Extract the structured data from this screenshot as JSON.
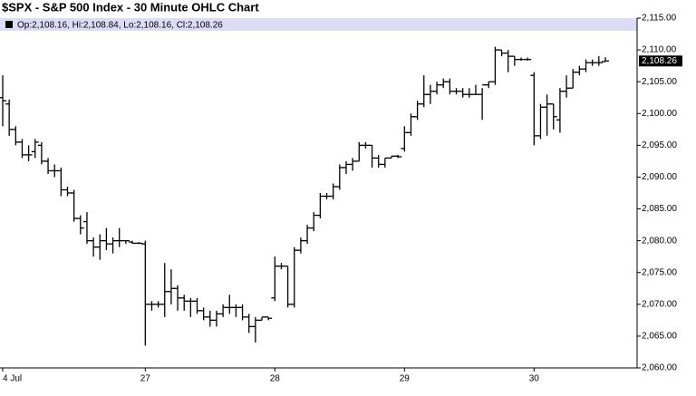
{
  "chart_data": {
    "type": "ohlc",
    "title": "$SPX - S&P 500 Index - 30 Minute OHLC Chart",
    "info": "Op:2,108.16, Hi:2,108.84, Lo:2,108.16, Cl:2,108.26",
    "last_value": {
      "value": 2108.26,
      "label": "2,108.26"
    },
    "x": [
      0,
      1,
      2,
      3,
      4,
      5,
      6,
      7,
      8,
      9,
      10,
      11,
      12,
      13,
      14,
      15,
      16,
      17,
      18,
      19,
      20,
      21,
      22,
      23,
      24,
      25,
      26,
      27,
      28,
      29,
      30,
      31,
      32,
      33,
      34,
      35,
      36,
      37,
      38,
      39,
      40,
      41,
      42,
      43,
      44,
      45,
      46,
      47,
      48,
      49,
      50,
      51,
      52,
      53,
      54,
      55,
      56,
      57,
      58,
      59,
      60,
      61,
      62,
      63,
      64,
      65,
      66,
      67,
      68,
      69,
      70,
      71,
      72,
      73,
      74,
      75,
      76,
      77,
      78,
      79,
      80,
      81,
      82,
      83,
      84,
      85,
      86,
      87,
      88,
      89,
      90,
      91,
      92,
      93
    ],
    "series": [
      {
        "color": "#000000",
        "open": [
          2102.5,
          2101.5,
          2097.5,
          2095.5,
          2093.5,
          2094,
          2095,
          2092.5,
          2091,
          2091,
          2088,
          2087.5,
          2083.5,
          2083,
          2080,
          2079,
          2080,
          2079.5,
          2080,
          2080,
          2079.8,
          2079.6,
          2079.5,
          2070,
          2070,
          2070,
          2072,
          2072.5,
          2071,
          2070.5,
          2070.5,
          2069,
          2068,
          2067.5,
          2068.5,
          2069.5,
          2069.5,
          2069.5,
          2068,
          2066.5,
          2067.5,
          2068,
          2071,
          2076,
          2076,
          2070,
          2078.5,
          2080,
          2082,
          2084,
          2087,
          2087,
          2088.5,
          2091.5,
          2092,
          2092.5,
          2095,
          2095,
          2093,
          2092,
          2093,
          2093.3,
          2094.5,
          2097,
          2099.5,
          2101.5,
          2103,
          2103.5,
          2104.5,
          2105,
          2103.5,
          2103.5,
          2103,
          2103,
          2103,
          2104.5,
          2105,
          2110,
          2109.5,
          2109,
          2108.5,
          2108.5,
          2106,
          2096.5,
          2101,
          2101.5,
          2099,
          2103.5,
          2104,
          2106.5,
          2107,
          2108,
          2108,
          2108.16
        ],
        "high": [
          2106,
          2102.2,
          2098,
          2096,
          2095,
          2096,
          2095.5,
          2093,
          2092,
          2091.5,
          2088.5,
          2088,
          2084,
          2084.5,
          2080.5,
          2081,
          2082,
          2080.5,
          2082,
          2080,
          2080,
          2079.8,
          2080,
          2070.5,
          2070.5,
          2076.5,
          2075.5,
          2073,
          2071.5,
          2071,
          2071,
          2069.5,
          2069,
          2069,
          2070,
          2071.5,
          2070,
          2070,
          2068.5,
          2068,
          2068,
          2068,
          2077.5,
          2076.5,
          2076,
          2079,
          2080.5,
          2082.5,
          2084.5,
          2087.5,
          2087.5,
          2089,
          2092,
          2092.5,
          2093,
          2095.5,
          2095.5,
          2095,
          2093.5,
          2093,
          2093.3,
          2093.5,
          2098,
          2100,
          2102,
          2106,
          2104.5,
          2105,
          2105.5,
          2105.5,
          2104,
          2104,
          2104,
          2104.5,
          2104,
          2105,
          2110.5,
          2110,
          2110,
          2109,
          2108.8,
          2108.8,
          2106.5,
          2101.5,
          2103,
          2101.5,
          2104,
          2106,
          2107,
          2107.5,
          2108.5,
          2108.5,
          2109,
          2108.84
        ],
        "low": [
          2098,
          2096.5,
          2095,
          2093,
          2092.5,
          2093,
          2092,
          2090.5,
          2090,
          2087,
          2087,
          2083,
          2081,
          2079.5,
          2077.5,
          2077,
          2078.5,
          2078,
          2079,
          2079.5,
          2079.5,
          2079.5,
          2063.5,
          2069,
          2069.5,
          2068,
          2070,
          2069,
          2069,
          2068,
          2068.5,
          2067.5,
          2066.5,
          2066.5,
          2068,
          2068.5,
          2068,
          2067.5,
          2065.5,
          2064,
          2067.5,
          2067.5,
          2070.5,
          2075.5,
          2069.5,
          2069.5,
          2078,
          2079.5,
          2081.5,
          2083.5,
          2086.5,
          2086.5,
          2088,
          2090.5,
          2091,
          2092.5,
          2094.5,
          2091.5,
          2091.5,
          2091.5,
          2093,
          2093,
          2094,
          2096.5,
          2099,
          2101,
          2101.5,
          2103,
          2104,
          2103,
          2103,
          2102.5,
          2102.5,
          2103,
          2099,
          2104,
          2104.5,
          2109,
          2106.5,
          2107.5,
          2108.3,
          2108.3,
          2095,
          2096,
          2096.5,
          2097.5,
          2097,
          2102.5,
          2104,
          2106,
          2106.5,
          2107.5,
          2107.5,
          2108.16
        ],
        "close": [
          2102,
          2097.5,
          2095.5,
          2093.5,
          2093.5,
          2095.5,
          2092.5,
          2091,
          2091,
          2088,
          2087.5,
          2083.5,
          2082,
          2080,
          2079,
          2080,
          2079.5,
          2080,
          2080,
          2080,
          2079.6,
          2079.6,
          2070,
          2070,
          2070,
          2072,
          2072.5,
          2071,
          2070.5,
          2070.5,
          2069,
          2068,
          2067.5,
          2068.5,
          2069.5,
          2069.5,
          2069.5,
          2068,
          2066.5,
          2067.5,
          2068,
          2067.8,
          2076,
          2076,
          2070,
          2078.5,
          2080,
          2082,
          2084,
          2087,
          2087,
          2088.5,
          2091.5,
          2092,
          2092.5,
          2095,
          2095,
          2093,
          2092,
          2093,
          2093.3,
          2093.2,
          2097,
          2099.5,
          2101.5,
          2103,
          2103.5,
          2104.5,
          2105,
          2103.5,
          2103.5,
          2103,
          2103,
          2103,
          2104.5,
          2105,
          2110,
          2109.5,
          2109,
          2108.5,
          2108.5,
          2108.5,
          2096.5,
          2101,
          2101.5,
          2099.5,
          2103.5,
          2104,
          2106.5,
          2107,
          2108,
          2108,
          2108,
          2108.26
        ]
      }
    ],
    "xlim": [
      -0.42,
      97.9
    ],
    "xticks": [
      {
        "value": 0,
        "label": "4 Jul"
      },
      {
        "value": 22,
        "label": "27"
      },
      {
        "value": 42,
        "label": "28"
      },
      {
        "value": 62,
        "label": "29"
      },
      {
        "value": 82,
        "label": "30"
      }
    ],
    "ylim": [
      2060,
      2115
    ],
    "yticks": [
      {
        "value": 2060,
        "label": "2,060.00"
      },
      {
        "value": 2065,
        "label": "2,065.00"
      },
      {
        "value": 2070,
        "label": "2,070.00"
      },
      {
        "value": 2075,
        "label": "2,075.00"
      },
      {
        "value": 2080,
        "label": "2,080.00"
      },
      {
        "value": 2085,
        "label": "2,085.00"
      },
      {
        "value": 2090,
        "label": "2,090.00"
      },
      {
        "value": 2095,
        "label": "2,095.00"
      },
      {
        "value": 2100,
        "label": "2,100.00"
      },
      {
        "value": 2105,
        "label": "2,105.00"
      },
      {
        "value": 2110,
        "label": "2,110.00"
      },
      {
        "value": 2115,
        "label": "2,115.00"
      }
    ]
  }
}
